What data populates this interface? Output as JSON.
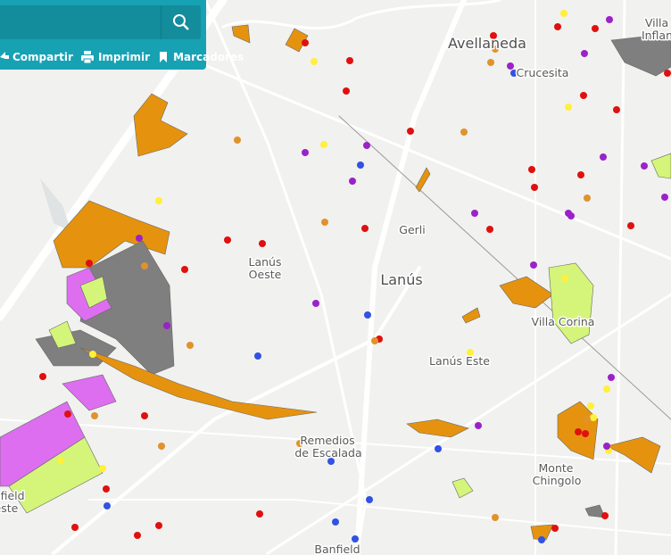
{
  "toolbar": {
    "buttons": [
      "Compartir",
      "Imprimir",
      "Marcadores"
    ]
  },
  "places": [
    {
      "lines": [
        "Avellaneda"
      ]
    },
    {
      "lines": [
        "Crucesita"
      ]
    },
    {
      "lines": [
        "Villa",
        "Inflamable"
      ]
    },
    {
      "lines": [
        "Gerli"
      ]
    },
    {
      "lines": [
        "Lanús",
        "Oeste"
      ]
    },
    {
      "lines": [
        "Lanús"
      ]
    },
    {
      "lines": [
        "Lanús Este"
      ]
    },
    {
      "lines": [
        "Villa Corina"
      ]
    },
    {
      "lines": [
        "Remedios",
        "de Escalada"
      ]
    },
    {
      "lines": [
        "Monte",
        "Chingolo"
      ]
    },
    {
      "lines": [
        "Banfield"
      ]
    },
    {
      "lines": [
        "Banfield",
        "Oeste"
      ]
    }
  ]
}
